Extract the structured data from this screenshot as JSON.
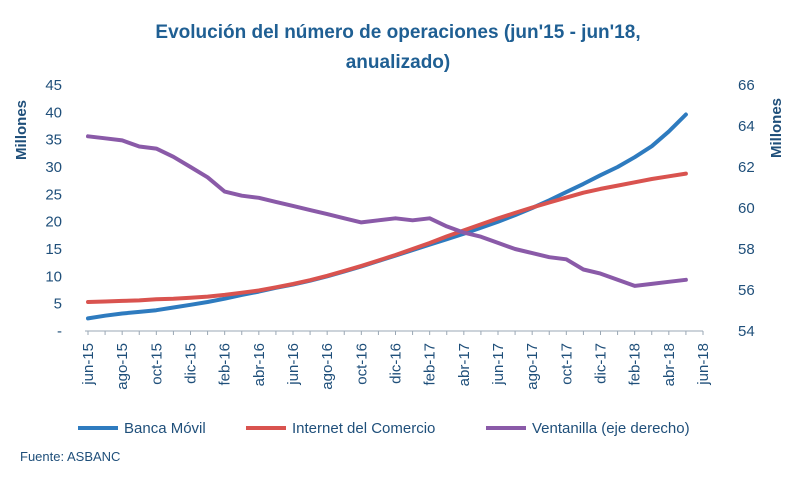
{
  "chart_data": {
    "type": "line",
    "title_line1": "Evolución del número de operaciones (jun'15 - jun'18,",
    "title_line2": "anualizado)",
    "ylabel_left": "Millones",
    "ylabel_right": "Millones",
    "ylim_left": [
      0,
      45
    ],
    "ylim_right": [
      54,
      66
    ],
    "yticks_left": [
      "-",
      "5",
      "10",
      "15",
      "20",
      "25",
      "30",
      "35",
      "40",
      "45"
    ],
    "yticks_right": [
      "54",
      "56",
      "58",
      "60",
      "62",
      "64",
      "66"
    ],
    "x_tick_labels": [
      "jun-15",
      "ago-15",
      "oct-15",
      "dic-15",
      "feb-16",
      "abr-16",
      "jun-16",
      "ago-16",
      "oct-16",
      "dic-16",
      "feb-17",
      "abr-17",
      "jun-17",
      "ago-17",
      "oct-17",
      "dic-17",
      "feb-18",
      "abr-18",
      "jun-18"
    ],
    "x_months": [
      "jun-15",
      "jul-15",
      "ago-15",
      "sep-15",
      "oct-15",
      "nov-15",
      "dic-15",
      "ene-16",
      "feb-16",
      "mar-16",
      "abr-16",
      "may-16",
      "jun-16",
      "jul-16",
      "ago-16",
      "sep-16",
      "oct-16",
      "nov-16",
      "dic-16",
      "ene-17",
      "feb-17",
      "mar-17",
      "abr-17",
      "may-17",
      "jun-17",
      "jul-17",
      "ago-17",
      "sep-17",
      "oct-17",
      "nov-17",
      "dic-17",
      "ene-18",
      "feb-18",
      "mar-18",
      "abr-18",
      "may-18"
    ],
    "grid": false,
    "legend_position": "bottom",
    "series": [
      {
        "name": "Banca Móvil",
        "axis": "left",
        "color": "#2e7bbf",
        "values": [
          2.3,
          2.8,
          3.2,
          3.5,
          3.8,
          4.3,
          4.8,
          5.3,
          5.9,
          6.6,
          7.2,
          7.9,
          8.5,
          9.2,
          10.0,
          10.9,
          11.8,
          12.8,
          13.8,
          14.8,
          15.8,
          16.8,
          17.8,
          18.9,
          20.0,
          21.2,
          22.5,
          23.9,
          25.4,
          26.9,
          28.5,
          30.0,
          31.8,
          33.8,
          36.5,
          39.6
        ]
      },
      {
        "name": "Internet del Comercio",
        "axis": "left",
        "color": "#d9534f",
        "values": [
          5.3,
          5.4,
          5.5,
          5.6,
          5.8,
          5.9,
          6.1,
          6.3,
          6.6,
          7.0,
          7.4,
          8.0,
          8.6,
          9.3,
          10.1,
          11.0,
          11.9,
          12.9,
          13.9,
          15.0,
          16.1,
          17.3,
          18.4,
          19.5,
          20.6,
          21.6,
          22.6,
          23.5,
          24.4,
          25.3,
          26.0,
          26.6,
          27.2,
          27.8,
          28.3,
          28.8
        ]
      },
      {
        "name": "Ventanilla (eje derecho)",
        "axis": "right",
        "color": "#8a5aa8",
        "values": [
          63.5,
          63.4,
          63.3,
          63.0,
          62.9,
          62.5,
          62.0,
          61.5,
          60.8,
          60.6,
          60.5,
          60.3,
          60.1,
          59.9,
          59.7,
          59.5,
          59.3,
          59.4,
          59.5,
          59.4,
          59.5,
          59.1,
          58.8,
          58.6,
          58.3,
          58.0,
          57.8,
          57.6,
          57.5,
          57.0,
          56.8,
          56.5,
          56.2,
          56.3,
          56.4,
          56.5
        ]
      }
    ]
  },
  "source": "Fuente: ASBANC"
}
